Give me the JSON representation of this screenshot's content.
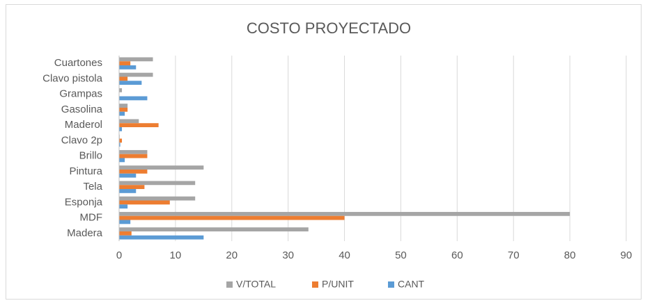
{
  "chart_data": {
    "type": "hbar",
    "title": "COSTO PROYECTADO",
    "categories": [
      "Madera",
      "MDF",
      "Esponja",
      "Tela",
      "Pintura",
      "Brillo",
      "Clavo 2p",
      "Maderol",
      "Gasolina",
      "Grampas",
      "Clavo pistola",
      "Cuartones"
    ],
    "series": [
      {
        "name": "V/TOTAL",
        "color": "#a5a5a5",
        "values": [
          33.6,
          80,
          13.5,
          13.5,
          15,
          5,
          0.1,
          3.5,
          1.5,
          0.5,
          6,
          6
        ]
      },
      {
        "name": "P/UNIT",
        "color": "#ed7d31",
        "values": [
          2.2,
          40,
          9,
          4.5,
          5,
          5,
          0.5,
          7,
          1.5,
          0,
          1.5,
          2
        ]
      },
      {
        "name": "CANT",
        "color": "#5b9bd5",
        "values": [
          15,
          2,
          1.5,
          3,
          3,
          1,
          0.2,
          0.5,
          1,
          5,
          4,
          3
        ]
      }
    ],
    "xlim": [
      0,
      90
    ],
    "xticks": [
      0,
      10,
      20,
      30,
      40,
      50,
      60,
      70,
      80,
      90
    ],
    "grid": true,
    "legend": "bottom"
  }
}
